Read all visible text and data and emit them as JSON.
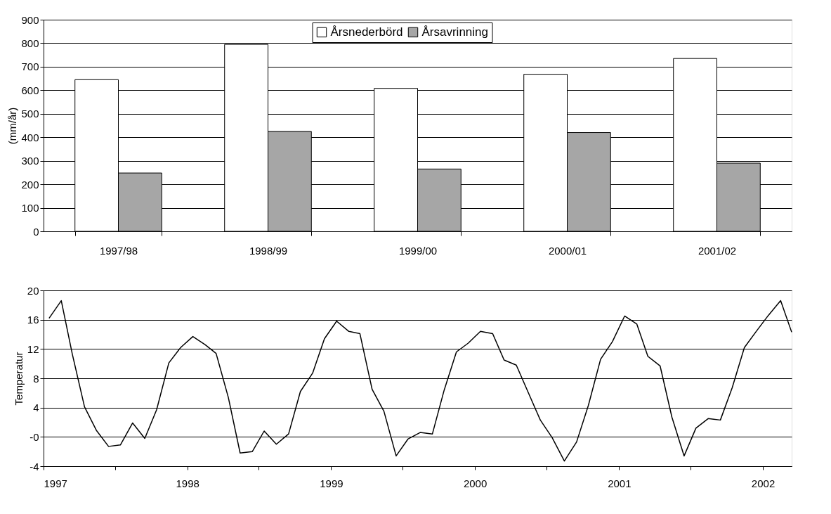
{
  "chart_data": [
    {
      "type": "bar",
      "ylabel": "(mm/år)",
      "categories": [
        "1997/98",
        "1998/99",
        "1999/00",
        "2000/01",
        "2001/02"
      ],
      "series": [
        {
          "name": "Årsnederbörd",
          "color": "#ffffff",
          "values": [
            645,
            795,
            608,
            668,
            735
          ]
        },
        {
          "name": "Årsavrinning",
          "color": "#a6a6a6",
          "values": [
            248,
            425,
            265,
            420,
            290
          ]
        }
      ],
      "ylim": [
        0,
        900
      ],
      "yticks": [
        0,
        100,
        200,
        300,
        400,
        500,
        600,
        700,
        800,
        900
      ],
      "grid": "y",
      "legend": "top"
    },
    {
      "type": "line",
      "ylabel": "Temperatur",
      "x": [
        "1997-01-15",
        "1997-02-15",
        "1997-03-15",
        "1997-04-15",
        "1997-05-15",
        "1997-06-15",
        "1997-07-15",
        "1997-08-15",
        "1997-09-15",
        "1997-10-15",
        "1997-11-15",
        "1997-12-15",
        "1998-01-15",
        "1998-02-15",
        "1998-03-15",
        "1998-04-15",
        "1998-05-15",
        "1998-06-15",
        "1998-07-15",
        "1998-08-15",
        "1998-09-15",
        "1998-10-15",
        "1998-11-15",
        "1998-12-15",
        "1999-01-15",
        "1999-02-15",
        "1999-03-15",
        "1999-04-15",
        "1999-05-15",
        "1999-06-15",
        "1999-07-15",
        "1999-08-15",
        "1999-09-15",
        "1999-10-15",
        "1999-11-15",
        "1999-12-15",
        "2000-01-15",
        "2000-02-15",
        "2000-03-15",
        "2000-04-15",
        "2000-05-15",
        "2000-06-15",
        "2000-07-15",
        "2000-08-15",
        "2000-09-15",
        "2000-10-15",
        "2000-11-15",
        "2000-12-15",
        "2001-01-15",
        "2001-02-15",
        "2001-03-15",
        "2001-04-15",
        "2001-05-15",
        "2001-06-15",
        "2001-07-15",
        "2001-08-15",
        "2001-09-15",
        "2001-10-15",
        "2001-11-15",
        "2001-12-15",
        "2002-01-15",
        "2002-02-15",
        "2002-03-15"
      ],
      "series": [
        {
          "color": "#000000",
          "values": [
            16.2,
            18.6,
            11.3,
            4.1,
            0.9,
            -1.3,
            -1.1,
            1.9,
            -0.2,
            3.7,
            10.1,
            12.2,
            13.7,
            12.6,
            11.4,
            5.4,
            -2.2,
            -2.0,
            0.8,
            -1.0,
            0.4,
            6.2,
            8.7,
            13.4,
            15.8,
            14.4,
            14.1,
            6.5,
            3.5,
            -2.6,
            -0.3,
            0.6,
            0.4,
            6.4,
            11.6,
            12.8,
            14.4,
            14.1,
            10.5,
            9.8,
            6.1,
            2.3,
            -0.1,
            -3.3,
            -0.7,
            4.3,
            10.6,
            13.0,
            16.5,
            15.4,
            11.0,
            9.7,
            2.7,
            -2.6,
            1.2,
            2.5,
            2.3,
            6.7,
            12.2,
            14.4,
            16.6,
            18.6,
            14.3
          ]
        }
      ],
      "xlim": [
        "1997-01-01",
        "2002-03-15"
      ],
      "xticks": [
        "1997",
        {
          "value": "1997-07-01",
          "label": null
        },
        "1998",
        {
          "value": "1998-07-01",
          "label": null
        },
        "1999",
        {
          "value": "1999-07-01",
          "label": null
        },
        "2000",
        {
          "value": "2000-07-01",
          "label": null
        },
        "2001",
        {
          "value": "2001-07-01",
          "label": null
        },
        "2002"
      ],
      "ylim": [
        -4,
        20
      ],
      "yticks": [
        -4,
        {
          "value": 0,
          "label": "-0"
        },
        4,
        8,
        12,
        16,
        20
      ],
      "grid": "y",
      "marker": "none",
      "line_style": "solid"
    }
  ]
}
